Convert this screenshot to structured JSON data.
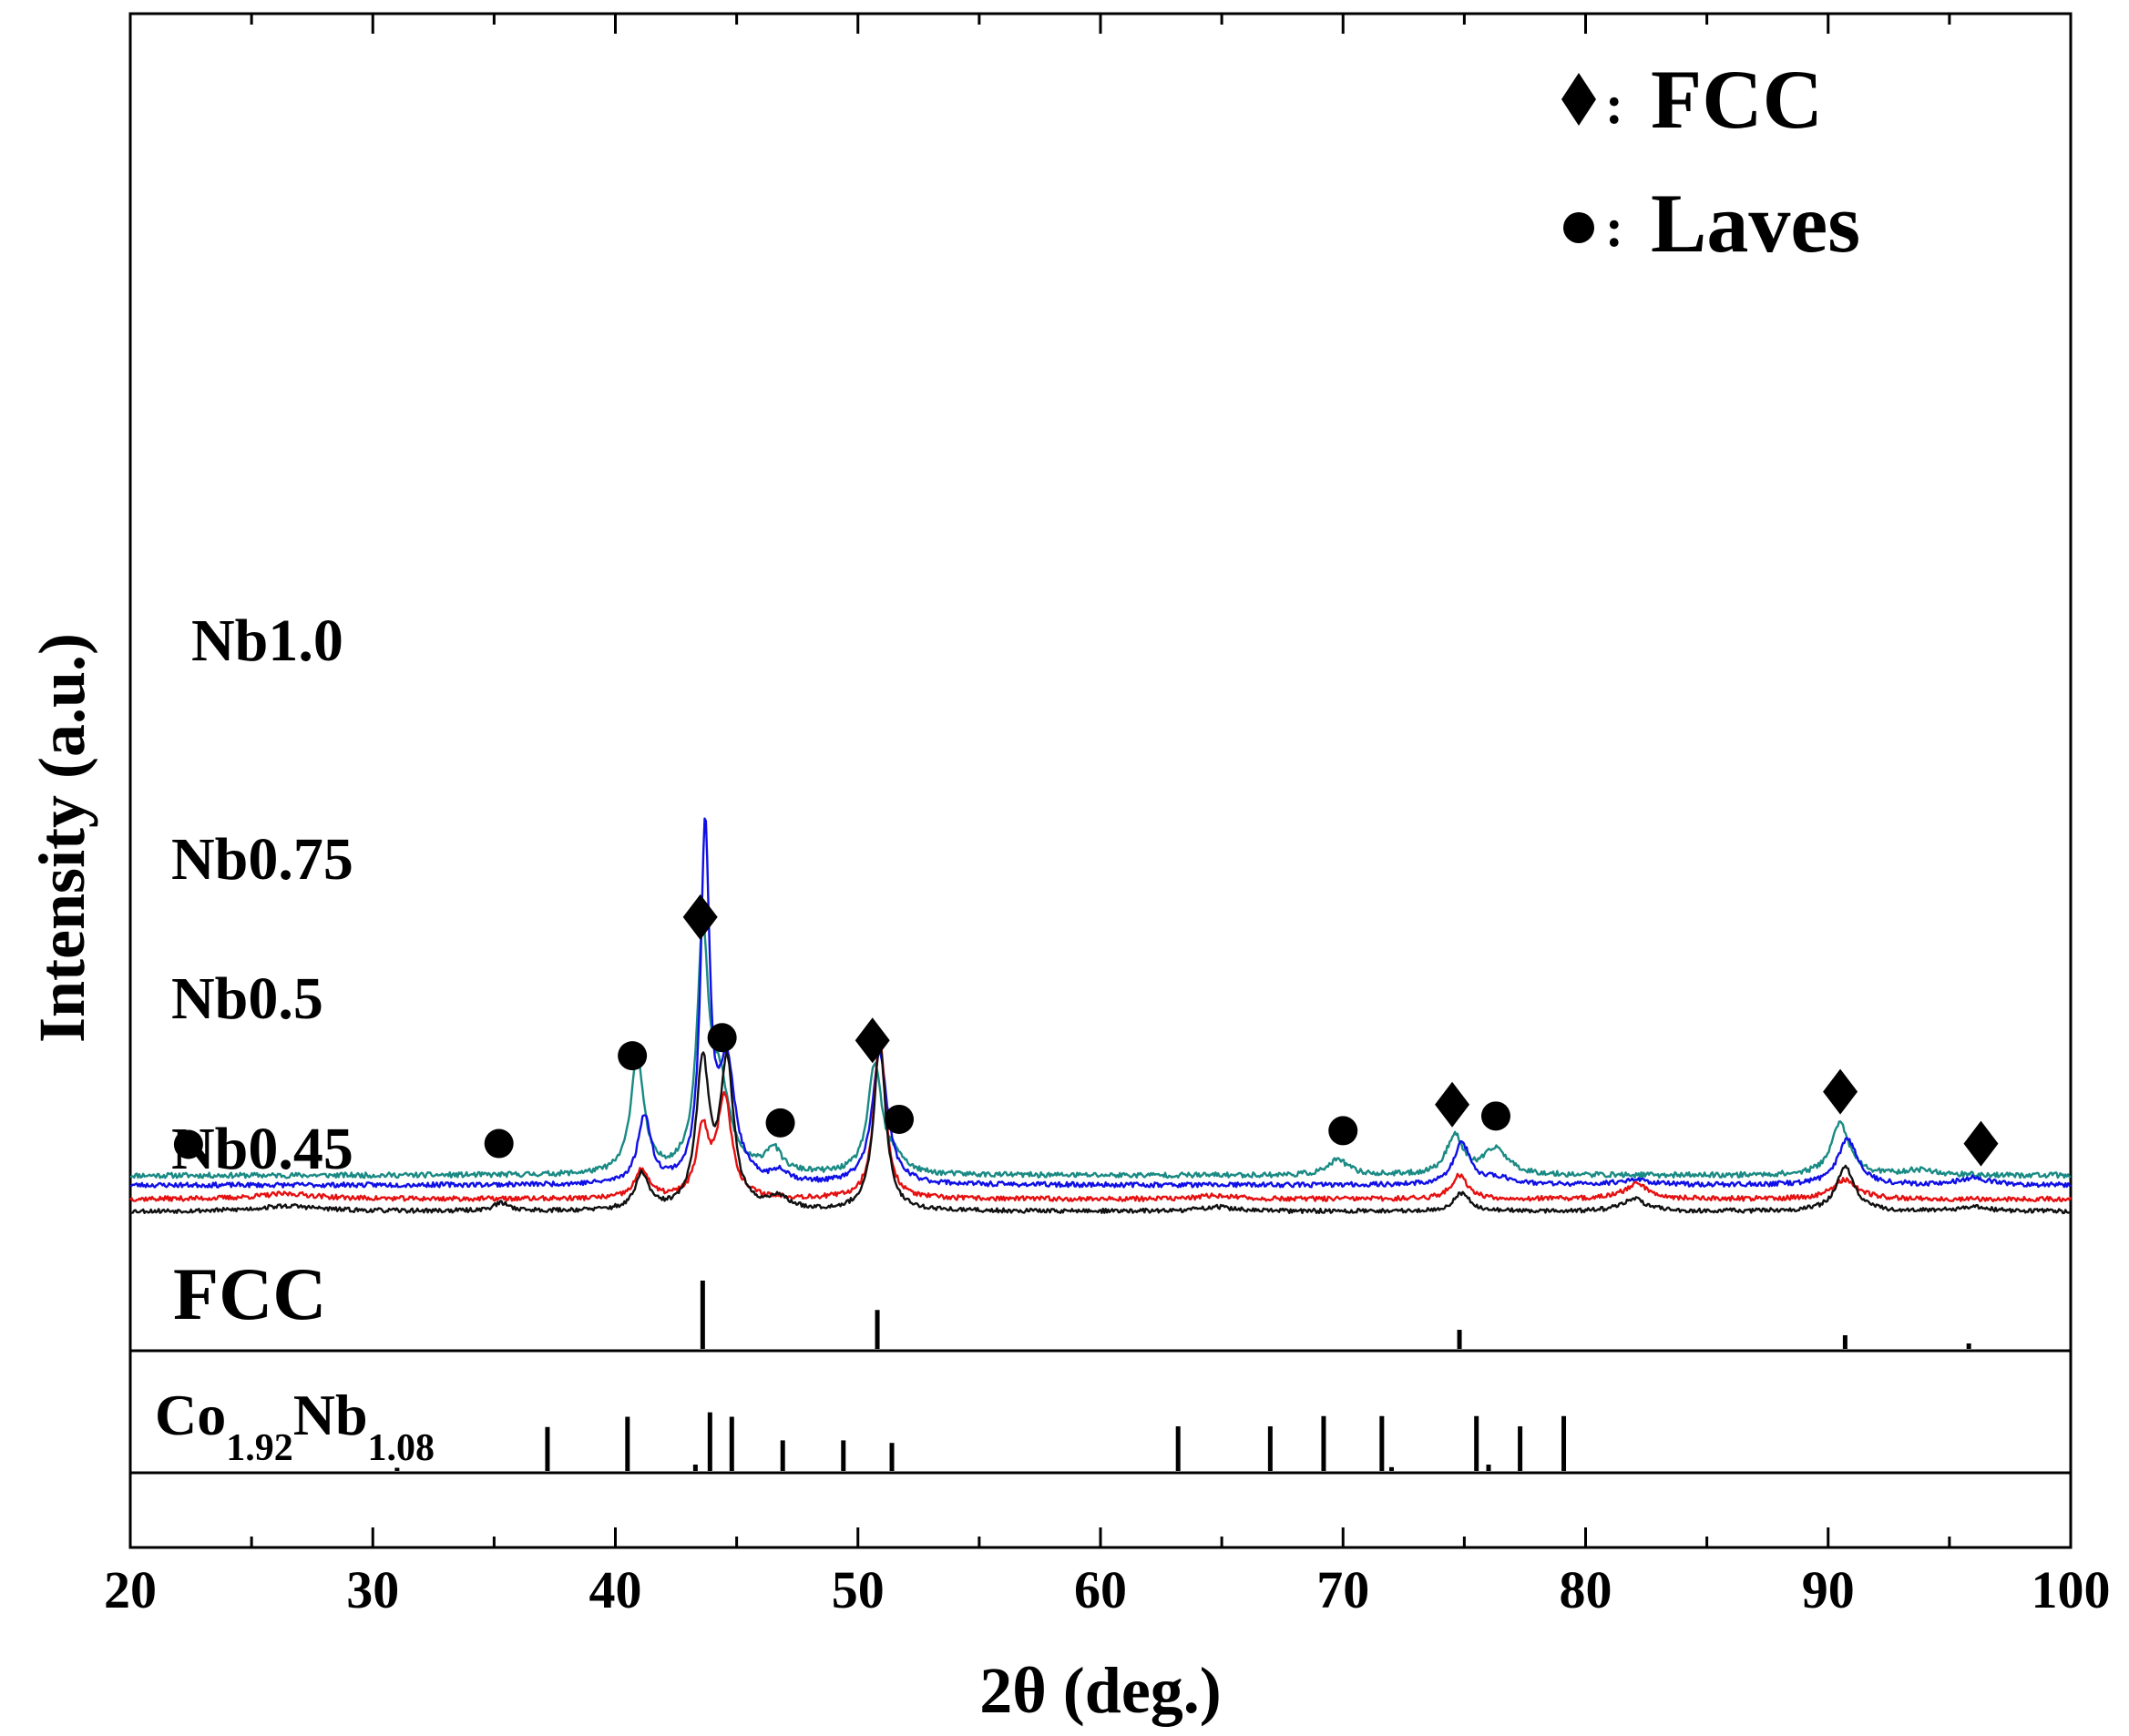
{
  "chart_data": {
    "type": "line",
    "xlabel": "2θ (deg.)",
    "ylabel": "Intensity (a.u.)",
    "xlim": [
      20,
      100
    ],
    "xticks": [
      20,
      30,
      40,
      50,
      60,
      70,
      80,
      90,
      100
    ],
    "xtick_labels": [
      "20",
      "30",
      "40",
      "50",
      "60",
      "70",
      "80",
      "90",
      "100"
    ],
    "legend": [
      {
        "name": "FCC",
        "marker": "diamond"
      },
      {
        "name": "Laves",
        "marker": "circle"
      }
    ],
    "legend_colon": ":",
    "series": [
      {
        "name": "Nb1.0",
        "color": "#1a8a84",
        "baseline": 0.82,
        "noise": 0.06,
        "seed": 11,
        "peaks": [
          [
            40.9,
            2.7,
            0.32
          ],
          [
            43.6,
            5.2,
            0.28
          ],
          [
            44.3,
            1.9,
            0.5
          ],
          [
            46.5,
            0.55,
            0.4
          ],
          [
            50.7,
            2.5,
            0.35
          ],
          [
            51.6,
            0.3,
            0.4
          ],
          [
            69.8,
            0.35,
            0.5
          ],
          [
            74.6,
            0.9,
            0.4
          ],
          [
            76.3,
            0.6,
            0.6
          ],
          [
            90.5,
            1.2,
            0.45
          ],
          [
            93.8,
            0.12,
            0.8
          ]
        ]
      },
      {
        "name": "Nb0.75",
        "color": "#1010e6",
        "baseline": 0.6,
        "noise": 0.055,
        "seed": 23,
        "peaks": [
          [
            41.2,
            1.55,
            0.32
          ],
          [
            43.7,
            8.0,
            0.22
          ],
          [
            44.6,
            2.6,
            0.42
          ],
          [
            46.8,
            0.25,
            0.4
          ],
          [
            50.9,
            3.0,
            0.38
          ],
          [
            74.9,
            0.95,
            0.4
          ],
          [
            76.4,
            0.15,
            0.8
          ],
          [
            82.0,
            0.12,
            0.8
          ],
          [
            90.8,
            1.05,
            0.5
          ],
          [
            96.0,
            0.16,
            0.7
          ]
        ]
      },
      {
        "name": "Nb0.5",
        "color": "#e61010",
        "baseline": 0.28,
        "noise": 0.055,
        "seed": 37,
        "peaks": [
          [
            26.5,
            0.12,
            1.5
          ],
          [
            41.1,
            0.65,
            0.35
          ],
          [
            43.6,
            1.5,
            0.3
          ],
          [
            44.5,
            2.3,
            0.35
          ],
          [
            50.9,
            3.7,
            0.28
          ],
          [
            64.8,
            0.08,
            0.8
          ],
          [
            74.8,
            0.55,
            0.4
          ],
          [
            82.1,
            0.35,
            0.6
          ],
          [
            90.7,
            0.45,
            0.6
          ]
        ]
      },
      {
        "name": "Nb0.45",
        "color": "#111111",
        "baseline": 0.0,
        "noise": 0.05,
        "seed": 53,
        "peaks": [
          [
            26.5,
            0.12,
            1.5
          ],
          [
            35.3,
            0.18,
            0.4
          ],
          [
            41.1,
            0.82,
            0.33
          ],
          [
            43.6,
            3.3,
            0.32
          ],
          [
            44.6,
            3.3,
            0.33
          ],
          [
            46.7,
            0.28,
            0.5
          ],
          [
            50.9,
            3.8,
            0.3
          ],
          [
            64.8,
            0.1,
            0.8
          ],
          [
            74.9,
            0.42,
            0.4
          ],
          [
            82.0,
            0.28,
            0.6
          ],
          [
            90.7,
            1.0,
            0.45
          ],
          [
            96.0,
            0.1,
            0.7
          ]
        ]
      }
    ],
    "markers": [
      {
        "x": 22.4,
        "type": "circle"
      },
      {
        "x": 35.2,
        "type": "circle"
      },
      {
        "x": 40.7,
        "type": "circle"
      },
      {
        "x": 43.5,
        "type": "diamond"
      },
      {
        "x": 44.4,
        "type": "circle"
      },
      {
        "x": 46.8,
        "type": "circle"
      },
      {
        "x": 50.6,
        "type": "diamond"
      },
      {
        "x": 51.7,
        "type": "circle"
      },
      {
        "x": 70.0,
        "type": "circle"
      },
      {
        "x": 74.5,
        "type": "diamond"
      },
      {
        "x": 76.3,
        "type": "circle"
      },
      {
        "x": 90.5,
        "type": "diamond"
      },
      {
        "x": 96.3,
        "type": "diamond"
      }
    ],
    "reference_fcc": {
      "label": "FCC",
      "peaks": [
        [
          43.6,
          1.0
        ],
        [
          50.8,
          0.57
        ],
        [
          74.8,
          0.28
        ],
        [
          90.7,
          0.2
        ],
        [
          95.8,
          0.08
        ]
      ]
    },
    "reference_laves": {
      "label_main": "Co",
      "label_sub1": "1.92",
      "label_main2": "Nb",
      "label_sub2": "1.08",
      "peaks": [
        [
          31.0,
          0.05
        ],
        [
          37.2,
          0.69
        ],
        [
          40.5,
          0.85
        ],
        [
          43.3,
          0.1
        ],
        [
          43.9,
          0.92
        ],
        [
          44.8,
          0.85
        ],
        [
          46.9,
          0.48
        ],
        [
          49.4,
          0.48
        ],
        [
          51.4,
          0.44
        ],
        [
          63.2,
          0.7
        ],
        [
          67.0,
          0.7
        ],
        [
          69.2,
          0.86
        ],
        [
          71.6,
          0.86
        ],
        [
          72.0,
          0.06
        ],
        [
          75.5,
          0.86
        ],
        [
          76.0,
          0.1
        ],
        [
          77.3,
          0.7
        ],
        [
          79.1,
          0.86
        ]
      ]
    }
  }
}
